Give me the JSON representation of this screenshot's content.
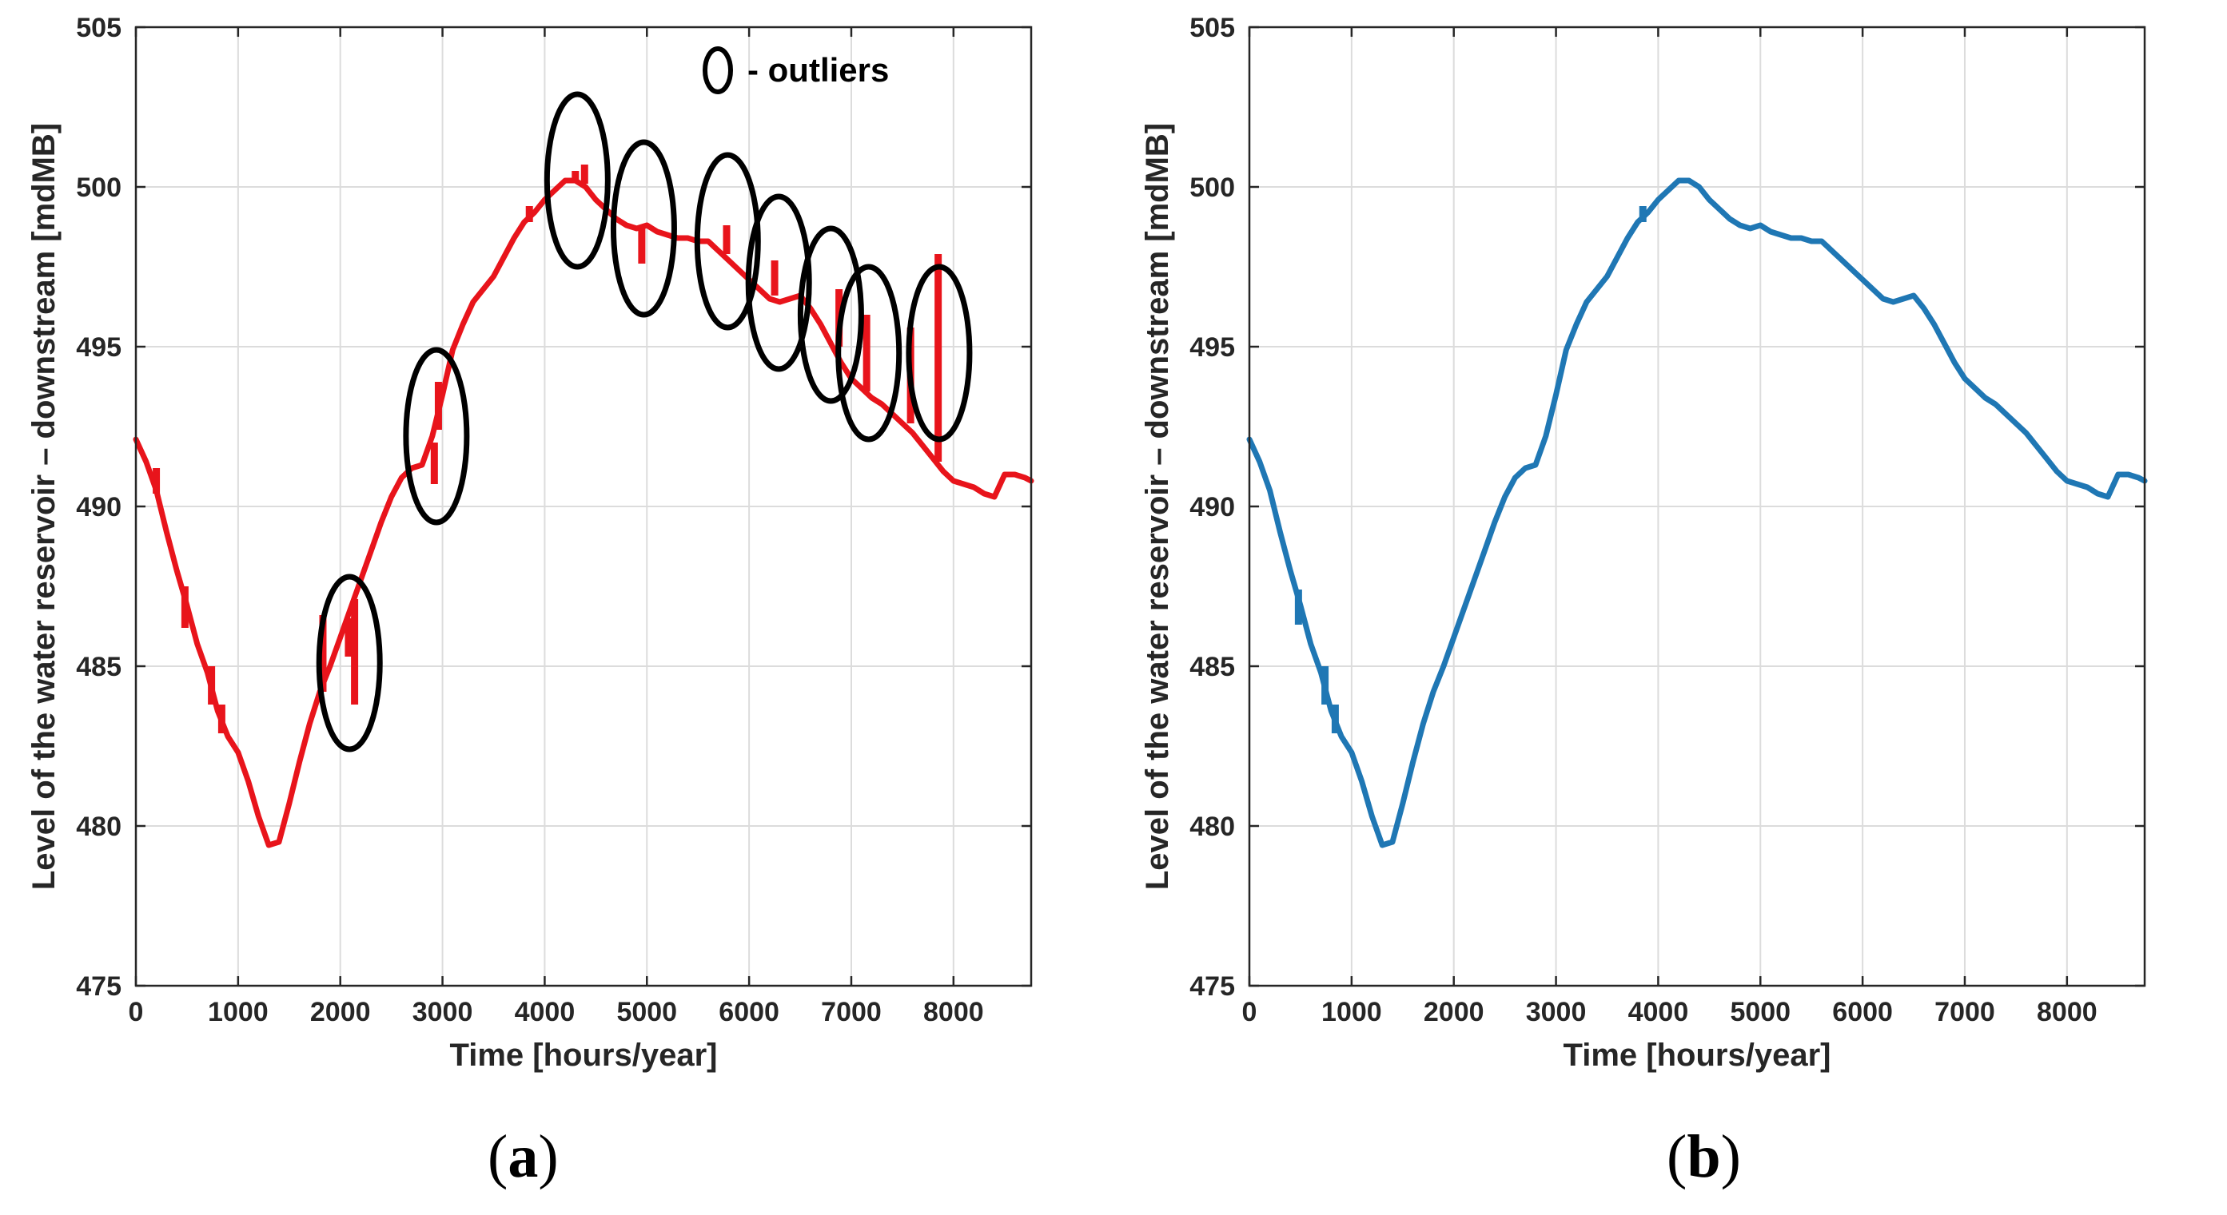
{
  "figure": {
    "panels": [
      {
        "label_open": "(",
        "label_letter": "a",
        "label_close": ")"
      },
      {
        "label_open": "(",
        "label_letter": "b",
        "label_close": ")"
      }
    ]
  },
  "chart_data": [
    {
      "type": "line",
      "xlabel": "Time [hours/year]",
      "ylabel": "Level of the water reservoir – downstream [mdMB]",
      "xlim": [
        0,
        8760
      ],
      "ylim": [
        475,
        505
      ],
      "xticks": [
        0,
        1000,
        2000,
        3000,
        4000,
        5000,
        6000,
        7000,
        8000
      ],
      "yticks": [
        475,
        480,
        485,
        490,
        495,
        500,
        505
      ],
      "grid": true,
      "legend": {
        "text": "- outliers",
        "marker": "ellipse",
        "position": "top-right"
      },
      "series": [
        {
          "color": "#e8141b",
          "x": [
            0,
            100,
            200,
            300,
            400,
            500,
            600,
            700,
            800,
            900,
            1000,
            1100,
            1200,
            1300,
            1400,
            1500,
            1600,
            1700,
            1800,
            1900,
            2000,
            2100,
            2200,
            2300,
            2400,
            2500,
            2600,
            2700,
            2800,
            2900,
            3000,
            3100,
            3200,
            3300,
            3400,
            3500,
            3600,
            3700,
            3800,
            3900,
            4000,
            4100,
            4200,
            4300,
            4400,
            4500,
            4600,
            4700,
            4800,
            4900,
            5000,
            5100,
            5200,
            5300,
            5400,
            5500,
            5600,
            5700,
            5800,
            5900,
            6000,
            6100,
            6200,
            6300,
            6400,
            6500,
            6600,
            6700,
            6800,
            6900,
            7000,
            7100,
            7200,
            7300,
            7400,
            7500,
            7600,
            7700,
            7800,
            7900,
            8000,
            8100,
            8200,
            8300,
            8400,
            8500,
            8600,
            8700,
            8760
          ],
          "y": [
            492.1,
            491.4,
            490.5,
            489.2,
            488.0,
            486.9,
            485.7,
            484.8,
            483.6,
            482.8,
            482.3,
            481.4,
            480.3,
            479.4,
            479.5,
            480.7,
            482.0,
            483.2,
            484.2,
            485.0,
            485.9,
            486.8,
            487.7,
            488.6,
            489.5,
            490.3,
            490.9,
            491.2,
            491.3,
            492.2,
            493.5,
            494.9,
            495.7,
            496.4,
            496.8,
            497.2,
            497.8,
            498.4,
            498.9,
            499.2,
            499.6,
            499.9,
            500.2,
            500.2,
            500.0,
            499.6,
            499.3,
            499.0,
            498.8,
            498.7,
            498.8,
            498.6,
            498.5,
            498.4,
            498.4,
            498.3,
            498.3,
            498.0,
            497.7,
            497.4,
            497.1,
            496.8,
            496.5,
            496.4,
            496.5,
            496.6,
            496.2,
            495.7,
            495.1,
            494.5,
            494.0,
            493.7,
            493.4,
            493.2,
            492.9,
            492.6,
            492.3,
            491.9,
            491.5,
            491.1,
            490.8,
            490.7,
            490.6,
            490.4,
            490.3,
            491.0,
            491.0,
            490.9,
            490.8
          ]
        }
      ],
      "outlier_spikes": [
        {
          "x": 200,
          "y_from": 491.2,
          "y_to": 490.4
        },
        {
          "x": 480,
          "y_from": 487.5,
          "y_to": 486.2
        },
        {
          "x": 740,
          "y_from": 485.0,
          "y_to": 483.8
        },
        {
          "x": 840,
          "y_from": 483.8,
          "y_to": 482.9
        },
        {
          "x": 1830,
          "y_from": 484.2,
          "y_to": 486.6
        },
        {
          "x": 2080,
          "y_from": 485.3,
          "y_to": 486.5
        },
        {
          "x": 2140,
          "y_from": 487.1,
          "y_to": 483.8
        },
        {
          "x": 2920,
          "y_from": 492.0,
          "y_to": 490.7
        },
        {
          "x": 2960,
          "y_from": 492.4,
          "y_to": 493.9
        },
        {
          "x": 3850,
          "y_from": 498.9,
          "y_to": 499.4
        },
        {
          "x": 4300,
          "y_from": 500.2,
          "y_to": 500.5
        },
        {
          "x": 4390,
          "y_from": 500.1,
          "y_to": 500.7
        },
        {
          "x": 4950,
          "y_from": 498.7,
          "y_to": 497.6
        },
        {
          "x": 5780,
          "y_from": 497.9,
          "y_to": 498.8
        },
        {
          "x": 6250,
          "y_from": 496.6,
          "y_to": 497.7
        },
        {
          "x": 6880,
          "y_from": 495.0,
          "y_to": 496.8
        },
        {
          "x": 7150,
          "y_from": 493.6,
          "y_to": 496.0
        },
        {
          "x": 7580,
          "y_from": 492.6,
          "y_to": 495.6
        },
        {
          "x": 7850,
          "y_from": 491.4,
          "y_to": 497.9
        }
      ],
      "outlier_ellipses": [
        {
          "x": 2090,
          "y": 485.1
        },
        {
          "x": 2940,
          "y": 492.2
        },
        {
          "x": 4320,
          "y": 500.2
        },
        {
          "x": 4970,
          "y": 498.7
        },
        {
          "x": 5790,
          "y": 498.3
        },
        {
          "x": 6290,
          "y": 497.0
        },
        {
          "x": 6800,
          "y": 496.0
        },
        {
          "x": 7170,
          "y": 494.8
        },
        {
          "x": 7860,
          "y": 494.8
        }
      ]
    },
    {
      "type": "line",
      "xlabel": "Time [hours/year]",
      "ylabel": "Level of the water reservoir – downstream [mdMB]",
      "xlim": [
        0,
        8760
      ],
      "ylim": [
        475,
        505
      ],
      "xticks": [
        0,
        1000,
        2000,
        3000,
        4000,
        5000,
        6000,
        7000,
        8000
      ],
      "yticks": [
        475,
        480,
        485,
        490,
        495,
        500,
        505
      ],
      "grid": true,
      "series": [
        {
          "color": "#1f77b4",
          "x": [
            0,
            100,
            200,
            300,
            400,
            500,
            600,
            700,
            800,
            900,
            1000,
            1100,
            1200,
            1300,
            1400,
            1500,
            1600,
            1700,
            1800,
            1900,
            2000,
            2100,
            2200,
            2300,
            2400,
            2500,
            2600,
            2700,
            2800,
            2900,
            3000,
            3100,
            3200,
            3300,
            3400,
            3500,
            3600,
            3700,
            3800,
            3900,
            4000,
            4100,
            4200,
            4300,
            4400,
            4500,
            4600,
            4700,
            4800,
            4900,
            5000,
            5100,
            5200,
            5300,
            5400,
            5500,
            5600,
            5700,
            5800,
            5900,
            6000,
            6100,
            6200,
            6300,
            6400,
            6500,
            6600,
            6700,
            6800,
            6900,
            7000,
            7100,
            7200,
            7300,
            7400,
            7500,
            7600,
            7700,
            7800,
            7900,
            8000,
            8100,
            8200,
            8300,
            8400,
            8500,
            8600,
            8700,
            8760
          ],
          "y": [
            492.1,
            491.4,
            490.5,
            489.2,
            488.0,
            486.9,
            485.7,
            484.8,
            483.6,
            482.8,
            482.3,
            481.4,
            480.3,
            479.4,
            479.5,
            480.7,
            482.0,
            483.2,
            484.2,
            485.0,
            485.9,
            486.8,
            487.7,
            488.6,
            489.5,
            490.3,
            490.9,
            491.2,
            491.3,
            492.2,
            493.5,
            494.9,
            495.7,
            496.4,
            496.8,
            497.2,
            497.8,
            498.4,
            498.9,
            499.2,
            499.6,
            499.9,
            500.2,
            500.2,
            500.0,
            499.6,
            499.3,
            499.0,
            498.8,
            498.7,
            498.8,
            498.6,
            498.5,
            498.4,
            498.4,
            498.3,
            498.3,
            498.0,
            497.7,
            497.4,
            497.1,
            496.8,
            496.5,
            496.4,
            496.5,
            496.6,
            496.2,
            495.7,
            495.1,
            494.5,
            494.0,
            493.7,
            493.4,
            493.2,
            492.9,
            492.6,
            492.3,
            491.9,
            491.5,
            491.1,
            490.8,
            490.7,
            490.6,
            490.4,
            490.3,
            491.0,
            491.0,
            490.9,
            490.8
          ]
        }
      ],
      "outlier_spikes": [
        {
          "x": 480,
          "y_from": 487.4,
          "y_to": 486.3
        },
        {
          "x": 740,
          "y_from": 485.0,
          "y_to": 483.8
        },
        {
          "x": 840,
          "y_from": 483.8,
          "y_to": 482.9
        },
        {
          "x": 3850,
          "y_from": 498.9,
          "y_to": 499.4
        }
      ]
    }
  ]
}
